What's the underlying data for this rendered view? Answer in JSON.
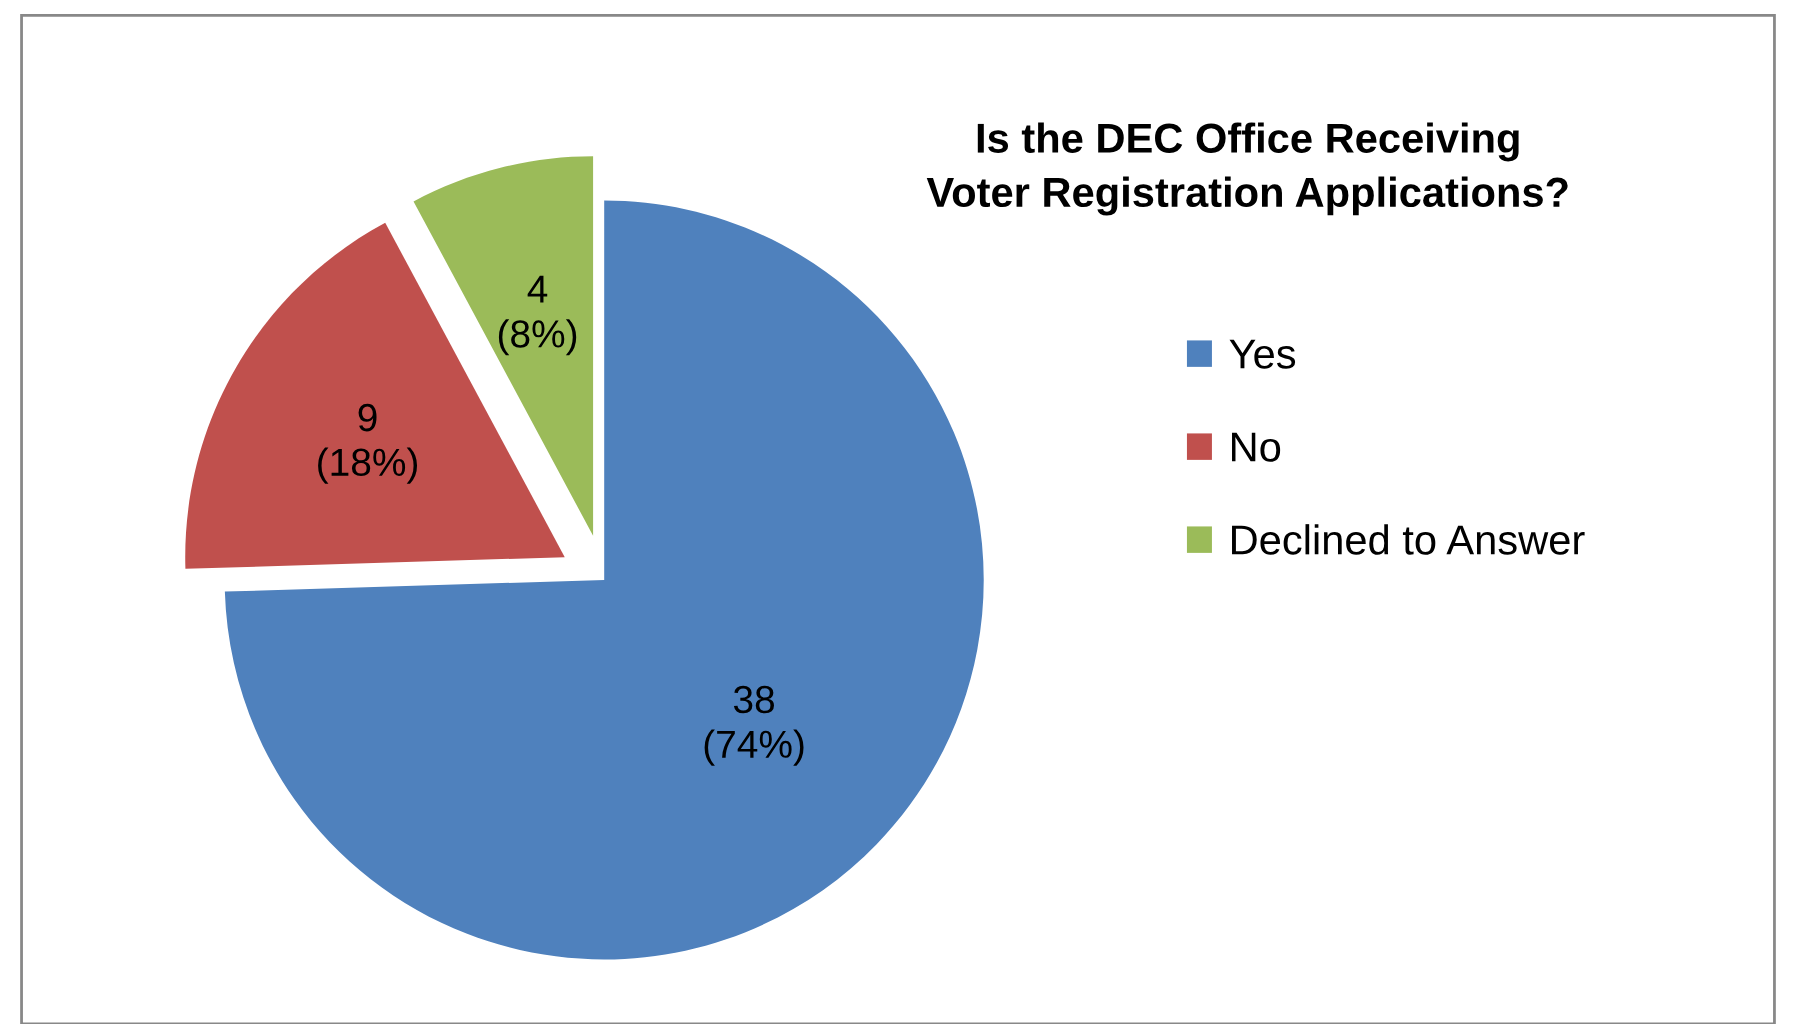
{
  "chart_data": {
    "type": "pie",
    "title": "Is the DEC Office Receiving\nVoter Registration Applications?",
    "categories": [
      "Yes",
      "No",
      "Declined to Answer"
    ],
    "values": [
      38,
      9,
      4
    ],
    "colors": [
      "#4f81bd",
      "#c0504d",
      "#9bbb59"
    ],
    "value_labels": [
      "38\n(74%)",
      "9\n(18%)",
      "4\n(8%)"
    ],
    "legend": "right"
  }
}
